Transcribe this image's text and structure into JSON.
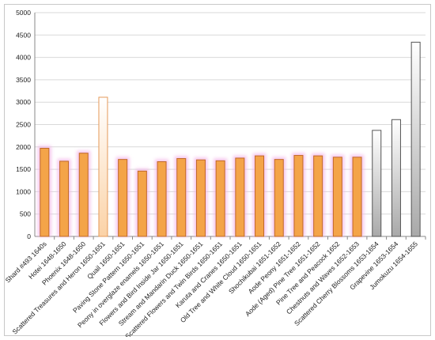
{
  "chart_data": {
    "type": "bar",
    "title": "",
    "xlabel": "",
    "ylabel": "",
    "ylim": [
      0,
      5000
    ],
    "yticks": [
      0,
      500,
      1000,
      1500,
      2000,
      2500,
      3000,
      3500,
      4000,
      4500,
      5000
    ],
    "grid": true,
    "legend": "none",
    "categories": [
      "Shard #493 1640s",
      "Hotei 1648-1650",
      "Phoenix 1648-1650",
      "Scattered Treasures and Heron 1650-1651",
      "Quail 1650-1651",
      "Paving Stone Pattern 1650-1651",
      "Peony in overglaze enamels 1650-1651",
      "Flowers and Bird Inside Jar 1650-1651",
      "Stream and Mandarin Duck 1650-1651",
      "Scattered Flowers and Twin Birds 1650-1651",
      "Karuta and Cranes 1650-1651",
      "Old Tree and White Cloud 1650-1651",
      "Shochikubai 1651-1652",
      "Aode Peony 1651-1652",
      "Aode (Aged) Pine Tree 1651-1652",
      "Pine Tree and Peacock 1652",
      "Chestnuts and Waves 1652-1653",
      "Scattered Cherry Blossoms 1653-1654",
      "Grapevine 1653-1654",
      "Jumokuzu 1654-1655"
    ],
    "values": [
      1970,
      1680,
      1860,
      3110,
      1720,
      1460,
      1670,
      1740,
      1710,
      1690,
      1750,
      1800,
      1720,
      1810,
      1800,
      1770,
      1770,
      2370,
      2610,
      4340
    ],
    "styles": [
      "orange",
      "orange",
      "orange",
      "light-orange",
      "orange",
      "orange",
      "orange",
      "orange",
      "orange",
      "orange",
      "orange",
      "orange",
      "orange",
      "orange",
      "orange",
      "orange",
      "orange",
      "gray",
      "gray",
      "gray"
    ],
    "colors": {
      "orange_fill": "#f4a448",
      "orange_stroke": "#c0682a",
      "orange_glow": "#f4b8e8",
      "light_orange_fill_top": "#ffffff",
      "light_orange_fill_bottom": "#fbd2a6",
      "light_orange_stroke": "#e59a5a",
      "gray_fill_top": "#ffffff",
      "gray_fill_bottom": "#a9a9a9",
      "gray_stroke": "#555555",
      "gridline": "#d9d9d9"
    }
  }
}
